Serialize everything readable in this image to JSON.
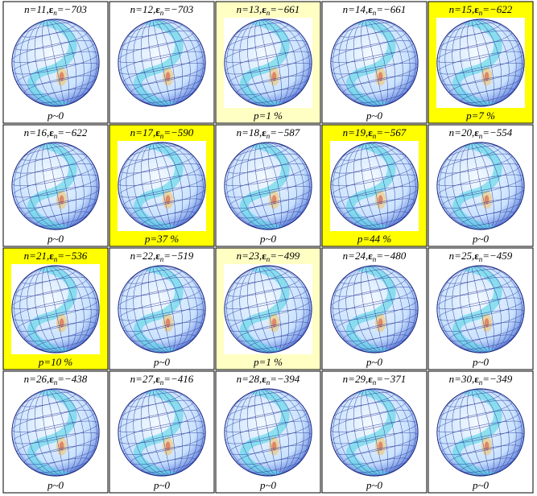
{
  "panels": [
    {
      "n_label": "n=11,",
      "symbol": "ε",
      "subscript": "n",
      "energy_label": "=−703",
      "p_label": "p~0"
    },
    {
      "n_label": "n=12,",
      "symbol": "ε",
      "subscript": "n",
      "energy_label": "=−703"
    },
    {
      "n_label": "n=13,",
      "symbol": "ε",
      "subscript": "n",
      "energy_label": "=−661",
      "p_label": "p=1 %",
      "color": "#ffffc4"
    },
    {
      "n_label": "n=14,",
      "symbol": "ε",
      "subscript": "n",
      "energy_label": "=−661",
      "p_label": "p~0"
    },
    {
      "n_label": "n=15,",
      "symbol": "ε",
      "subscript": "n",
      "energy_label": "=−622",
      "p_label": "p=7 %",
      "color": "#ffff00"
    },
    {
      "n_label": "n=16,",
      "symbol": "ε",
      "subscript": "n",
      "energy_label": "=−622",
      "p_label": "p~0"
    },
    {
      "n_label": "n=17,",
      "symbol": "ε",
      "subscript": "n",
      "energy_label": "=−590",
      "p_label": "p=37 %",
      "color": "#ffff00"
    },
    {
      "n_label": "n=18,",
      "symbol": "ε",
      "subscript": "n",
      "energy_label": "=−587",
      "p_label": "p~0"
    },
    {
      "n_label": "n=19,",
      "symbol": "ε",
      "subscript": "n",
      "energy_label": "=−567",
      "p_label": "p=44 %",
      "color": "#ffff00"
    },
    {
      "n_label": "n=20,",
      "symbol": "ε",
      "subscript": "n",
      "energy_label": "=−554",
      "p_label": "p~0"
    },
    {
      "n_label": "n=21,",
      "symbol": "ε",
      "subscript": "n",
      "energy_label": "=−536",
      "p_label": "p=10 %",
      "color": "#ffff00"
    },
    {
      "n_label": "n=22,",
      "symbol": "ε",
      "subscript": "n",
      "energy_label": "=−519",
      "p_label": "p~0"
    },
    {
      "n_label": "n=23,",
      "symbol": "ε",
      "subscript": "n",
      "energy_label": "=−499",
      "p_label": "p=1 %",
      "color": "#ffffc4"
    },
    {
      "n_label": "n=24,",
      "symbol": "ε",
      "subscript": "n",
      "energy_label": "=−480",
      "p_label": "p~0"
    },
    {
      "n_label": "n=25,",
      "symbol": "ε",
      "subscript": "n",
      "energy_label": "=−459",
      "p_label": "p~0"
    },
    {
      "n_label": "n=26,",
      "symbol": "ε",
      "subscript": "n",
      "energy_label": "=−438",
      "p_label": "p~0"
    },
    {
      "n_label": "n=27,",
      "symbol": "ε",
      "subscript": "n",
      "energy_label": "=−416",
      "p_label": "p~0"
    },
    {
      "n_label": "n=28,",
      "symbol": "ε",
      "subscript": "n",
      "energy_label": "=−394",
      "p_label": "p~0"
    },
    {
      "n_label": "n=29,",
      "symbol": "ε",
      "subscript": "n",
      "energy_label": "=−371",
      "p_label": "p~0"
    },
    {
      "n_label": "n=30,",
      "symbol": "ε",
      "subscript": "n",
      "energy_label": "=−349",
      "p_label": "p~0"
    }
  ]
}
